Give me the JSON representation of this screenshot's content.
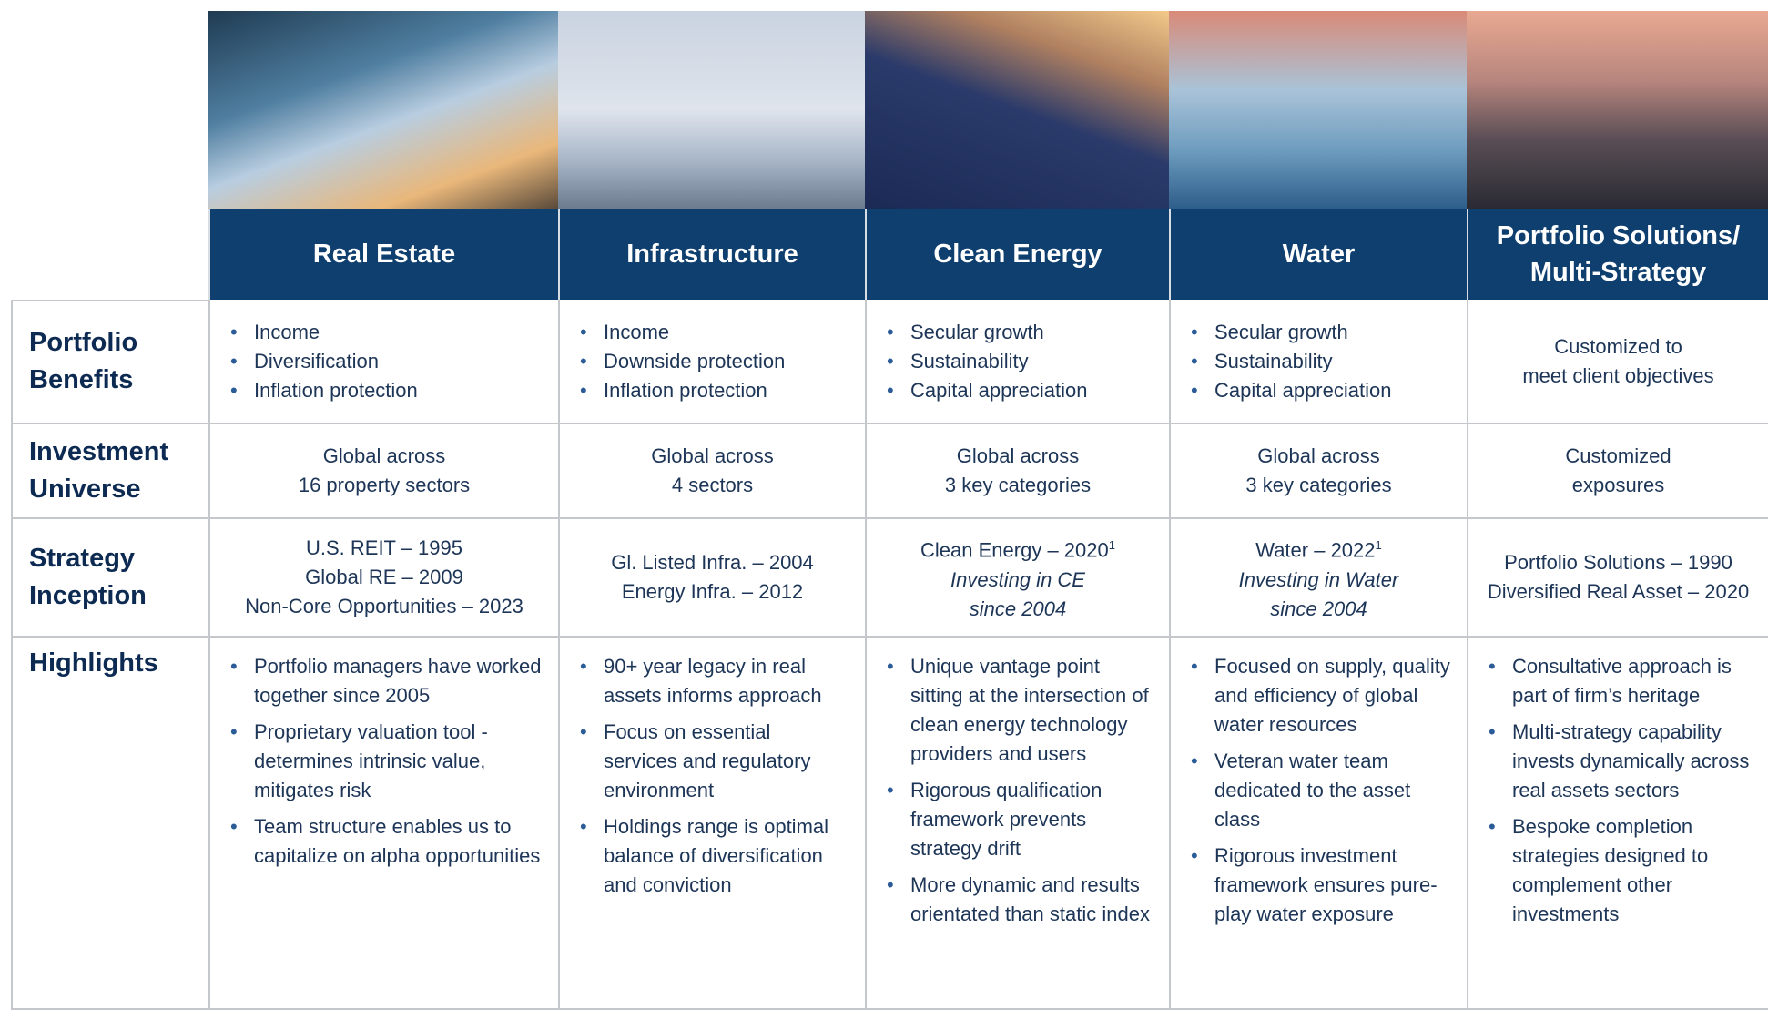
{
  "row_labels": [
    "Portfolio Benefits",
    "Investment Universe",
    "Strategy Inception",
    "Highlights"
  ],
  "columns": [
    {
      "title": "Real Estate",
      "benefits": [
        "Income",
        "Diversification",
        "Inflation protection"
      ],
      "universe": [
        "Global across",
        "16 property sectors"
      ],
      "inception": [
        "U.S. REIT – 1995",
        "Global RE – 2009",
        "Non-Core Opportunities  – 2023"
      ],
      "highlights": [
        "Portfolio managers have worked together since 2005",
        "Proprietary valuation tool - determines intrinsic value, mitigates risk",
        "Team structure enables us to  capitalize on alpha opportunities"
      ]
    },
    {
      "title": "Infrastructure",
      "benefits": [
        "Income",
        "Downside protection",
        "Inflation protection"
      ],
      "universe": [
        "Global across",
        "4 sectors"
      ],
      "inception": [
        "Gl. Listed Infra. – 2004",
        "Energy Infra. – 2012"
      ],
      "highlights": [
        "90+ year legacy in real assets informs approach",
        "Focus on essential services and regulatory environment",
        "Holdings range is optimal balance of diversification and conviction"
      ]
    },
    {
      "title": "Clean Energy",
      "benefits": [
        "Secular growth",
        "Sustainability",
        "Capital appreciation"
      ],
      "universe": [
        "Global across",
        "3 key categories"
      ],
      "inception": [
        "Clean Energy – 2020"
      ],
      "inception_note": "1",
      "inception_italic": [
        "Investing in CE",
        "since 2004"
      ],
      "highlights": [
        "Unique vantage point sitting at the intersection of clean energy technology providers and users",
        "Rigorous qualification framework prevents strategy drift",
        "More dynamic and results orientated than static index"
      ]
    },
    {
      "title": "Water",
      "benefits": [
        "Secular growth",
        "Sustainability",
        "Capital appreciation"
      ],
      "universe": [
        "Global across",
        "3 key categories"
      ],
      "inception": [
        "Water – 2022"
      ],
      "inception_note": "1",
      "inception_italic": [
        "Investing in Water",
        "since 2004"
      ],
      "highlights": [
        "Focused on supply, quality and efficiency of global water resources",
        "Veteran water team dedicated to the asset class",
        "Rigorous investment framework ensures pure-play water exposure"
      ]
    },
    {
      "title": "Portfolio Solutions/ Multi-Strategy",
      "benefits_text": [
        "Customized to",
        "meet client objectives"
      ],
      "universe": [
        "Customized",
        "exposures"
      ],
      "inception": [
        "Portfolio Solutions – 1990",
        "Diversified Real Asset – 2020"
      ],
      "highlights": [
        "Consultative approach is part of firm’s heritage",
        "Multi-strategy capability invests dynamically across real assets sectors",
        "Bespoke completion strategies designed to complement other investments"
      ]
    }
  ]
}
